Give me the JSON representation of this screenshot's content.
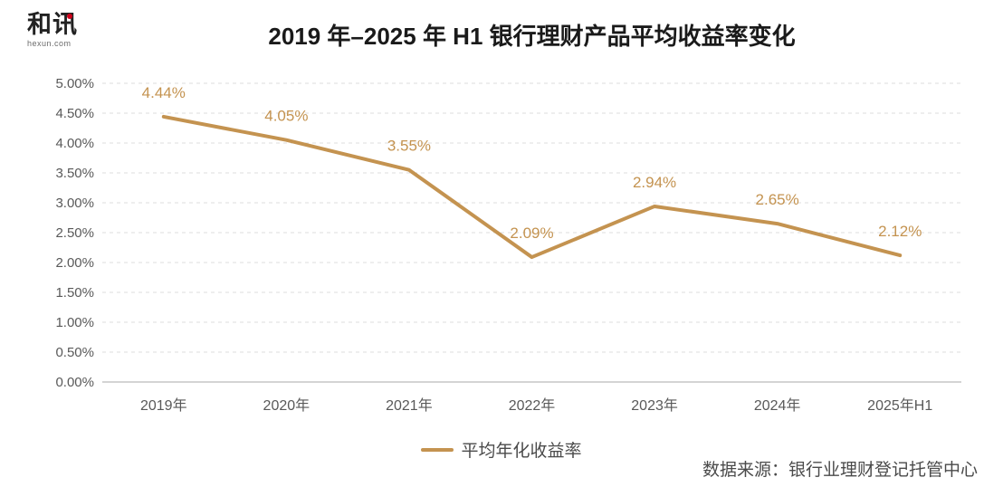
{
  "header": {
    "logo_text": "和讯",
    "logo_subtext": "hexun.com",
    "logo_dot_color": "#d0021b"
  },
  "chart_data": {
    "type": "line",
    "title": "2019 年–2025 年 H1 银行理财产品平均收益率变化",
    "categories": [
      "2019年",
      "2020年",
      "2021年",
      "2022年",
      "2023年",
      "2024年",
      "2025年H1"
    ],
    "series": [
      {
        "name": "平均年化收益率",
        "values": [
          4.44,
          4.05,
          3.55,
          2.09,
          2.94,
          2.65,
          2.12
        ]
      }
    ],
    "data_labels": [
      "4.44%",
      "4.05%",
      "3.55%",
      "2.09%",
      "2.94%",
      "2.65%",
      "2.12%"
    ],
    "xlabel": "",
    "ylabel": "",
    "ylim": [
      0,
      5
    ],
    "ytick_step": 0.5,
    "ytick_labels": [
      "0.00%",
      "0.50%",
      "1.00%",
      "1.50%",
      "2.00%",
      "2.50%",
      "3.00%",
      "3.50%",
      "4.00%",
      "4.50%",
      "5.00%"
    ],
    "grid": "horizontal-dashed",
    "legend_position": "bottom-center",
    "line_color": "#C49350",
    "data_label_color": "#C49350",
    "axis_text_color": "#595959",
    "gridline_color": "#DCDCDC",
    "baseline_color": "#A9A9A9"
  },
  "footer": {
    "source": "数据来源：银行业理财登记托管中心"
  }
}
